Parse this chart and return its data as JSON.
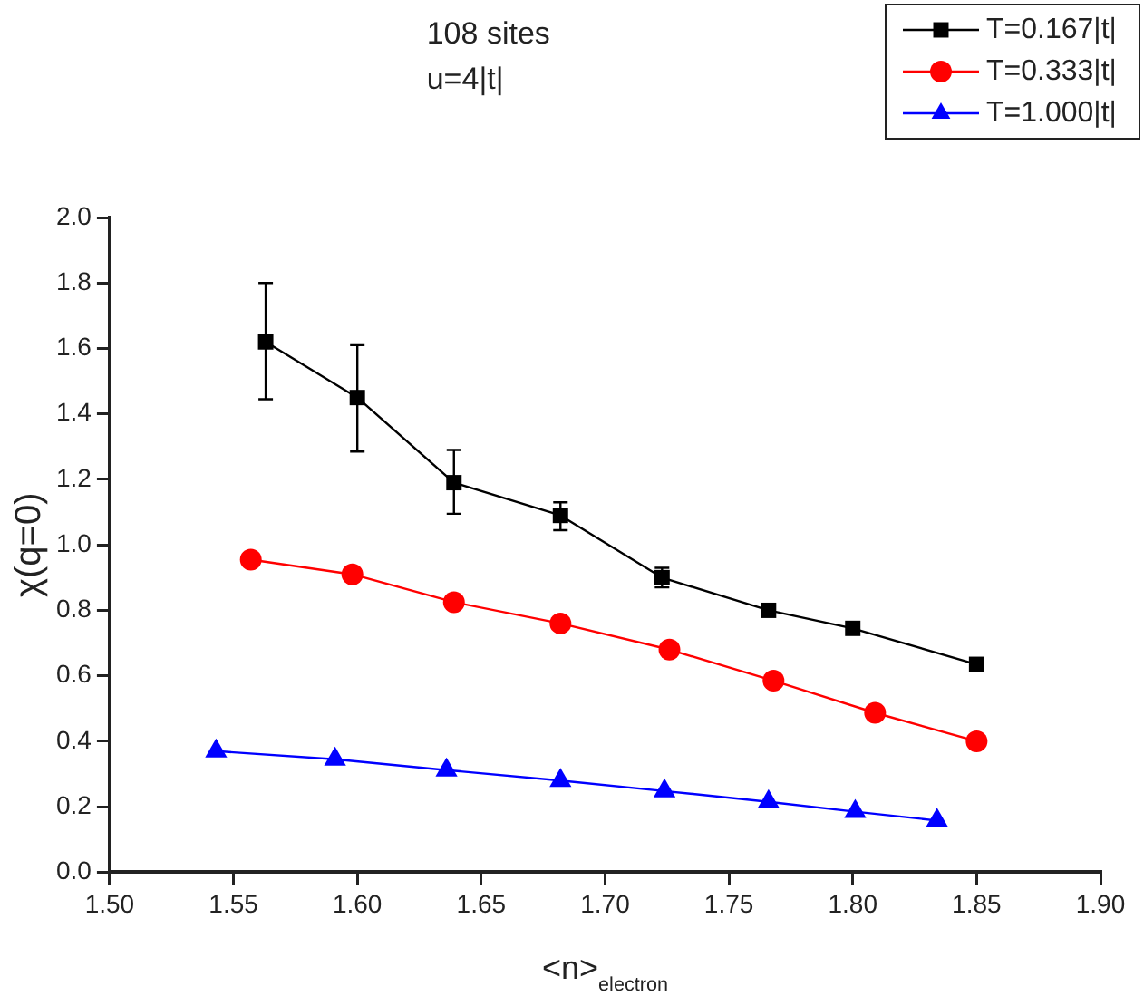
{
  "chart_data": {
    "type": "line",
    "title": "108 sites",
    "subtitle": "u=4|t|",
    "xlabel": "<n>$_{electron}$",
    "ylabel": "χ(q=0)",
    "xlim": [
      1.5,
      1.9
    ],
    "xticks": [
      {
        "value": 1.5,
        "label": "1.50"
      },
      {
        "value": 1.55,
        "label": "1.55"
      },
      {
        "value": 1.6,
        "label": "1.60"
      },
      {
        "value": 1.65,
        "label": "1.65"
      },
      {
        "value": 1.7,
        "label": "1.70"
      },
      {
        "value": 1.75,
        "label": "1.75"
      },
      {
        "value": 1.8,
        "label": "1.80"
      },
      {
        "value": 1.85,
        "label": "1.85"
      },
      {
        "value": 1.9,
        "label": "1.90"
      }
    ],
    "ylim": [
      0,
      2
    ],
    "yticks": [
      {
        "value": 0,
        "label": "0.0"
      },
      {
        "value": 0.2,
        "label": "0.2"
      },
      {
        "value": 0.4,
        "label": "0.4"
      },
      {
        "value": 0.6,
        "label": "0.6"
      },
      {
        "value": 0.8,
        "label": "0.8"
      },
      {
        "value": 1,
        "label": "1.0"
      },
      {
        "value": 1.2,
        "label": "1.2"
      },
      {
        "value": 1.4,
        "label": "1.4"
      },
      {
        "value": 1.6,
        "label": "1.6"
      },
      {
        "value": 1.8,
        "label": "1.8"
      },
      {
        "value": 2,
        "label": "2.0"
      }
    ],
    "grid": false,
    "legend": "top right",
    "line_style": "solid",
    "series": [
      {
        "name": "T=0.167|t|",
        "color": "#000000",
        "marker": "square",
        "x": [
          1.563,
          1.6,
          1.639,
          1.682,
          1.723,
          1.766,
          1.8,
          1.85
        ],
        "values": [
          1.62,
          1.45,
          1.19,
          1.09,
          0.9,
          0.8,
          0.745,
          0.635
        ],
        "errors": [
          [
            1.445,
            1.8
          ],
          [
            1.285,
            1.61
          ],
          [
            1.095,
            1.29
          ],
          [
            1.045,
            1.13
          ],
          [
            0.87,
            0.93
          ],
          [
            0.785,
            0.81
          ],
          null,
          null
        ]
      },
      {
        "name": "T=0.333|t|",
        "color": "#ff0000",
        "marker": "circle",
        "x": [
          1.557,
          1.598,
          1.639,
          1.682,
          1.726,
          1.768,
          1.809,
          1.85
        ],
        "values": [
          0.955,
          0.91,
          0.825,
          0.76,
          0.68,
          0.585,
          0.487,
          0.4
        ]
      },
      {
        "name": "T=1.000|t|",
        "color": "#0000ff",
        "marker": "triangle",
        "x": [
          1.543,
          1.591,
          1.636,
          1.682,
          1.724,
          1.766,
          1.801,
          1.834
        ],
        "values": [
          0.37,
          0.345,
          0.312,
          0.28,
          0.248,
          0.215,
          0.185,
          0.158
        ]
      }
    ]
  }
}
